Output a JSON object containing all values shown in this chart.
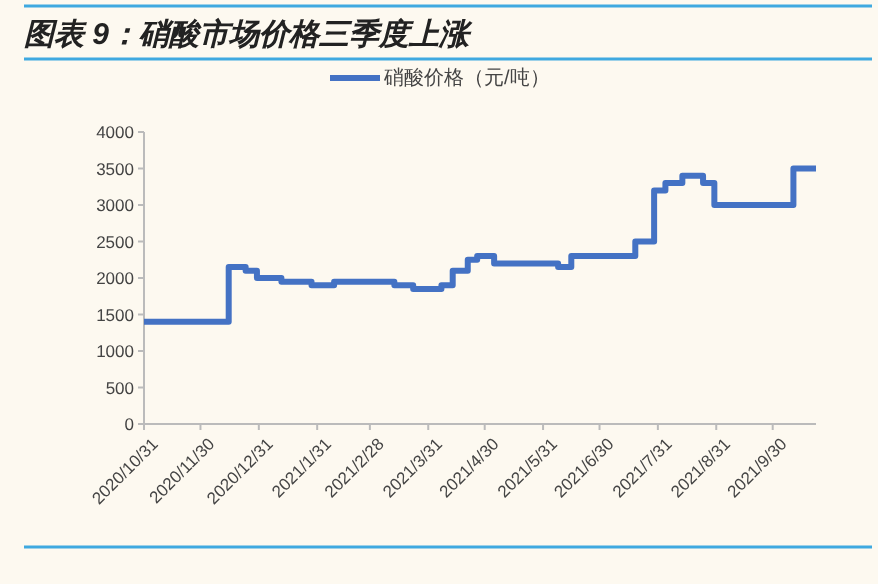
{
  "chart_data": {
    "type": "step",
    "title": "图表 9：硝酸市场价格三季度上涨",
    "x": [
      "2020-10-31",
      "2020-12-15",
      "2020-12-24",
      "2020-12-30",
      "2021-01-12",
      "2021-01-28",
      "2021-02-09",
      "2021-03-13",
      "2021-03-23",
      "2021-04-07",
      "2021-04-13",
      "2021-04-21",
      "2021-04-26",
      "2021-05-05",
      "2021-06-08",
      "2021-06-15",
      "2021-07-19",
      "2021-07-29",
      "2021-08-04",
      "2021-08-13",
      "2021-08-24",
      "2021-08-30",
      "2021-10-11",
      "2021-10-23"
    ],
    "series": [
      {
        "name": "硝酸价格（元/吨）",
        "color": "#4472c4",
        "values": [
          1400,
          2150,
          2100,
          2000,
          1950,
          1900,
          1950,
          1900,
          1850,
          1900,
          2100,
          2250,
          2300,
          2200,
          2150,
          2300,
          2500,
          3200,
          3300,
          3400,
          3300,
          3000,
          3500,
          3500
        ]
      }
    ],
    "xlim": [
      "2020-10-31",
      "2021-10-23"
    ],
    "xticks": [
      {
        "value": "2020-10-31",
        "label": "2020/10/31"
      },
      {
        "value": "2020-11-30",
        "label": "2020/11/30"
      },
      {
        "value": "2020-12-31",
        "label": "2020/12/31"
      },
      {
        "value": "2021-01-31",
        "label": "2021/1/31"
      },
      {
        "value": "2021-02-28",
        "label": "2021/2/28"
      },
      {
        "value": "2021-03-31",
        "label": "2021/3/31"
      },
      {
        "value": "2021-04-30",
        "label": "2021/4/30"
      },
      {
        "value": "2021-05-31",
        "label": "2021/5/31"
      },
      {
        "value": "2021-06-30",
        "label": "2021/6/30"
      },
      {
        "value": "2021-07-31",
        "label": "2021/7/31"
      },
      {
        "value": "2021-08-31",
        "label": "2021/8/31"
      },
      {
        "value": "2021-09-30",
        "label": "2021/9/30"
      }
    ],
    "ylim": [
      0,
      4000
    ],
    "yticks": [
      0,
      500,
      1000,
      1500,
      2000,
      2500,
      3000,
      3500,
      4000
    ],
    "grid": false,
    "legend": "top",
    "line_style": "solid",
    "marker": "none"
  }
}
